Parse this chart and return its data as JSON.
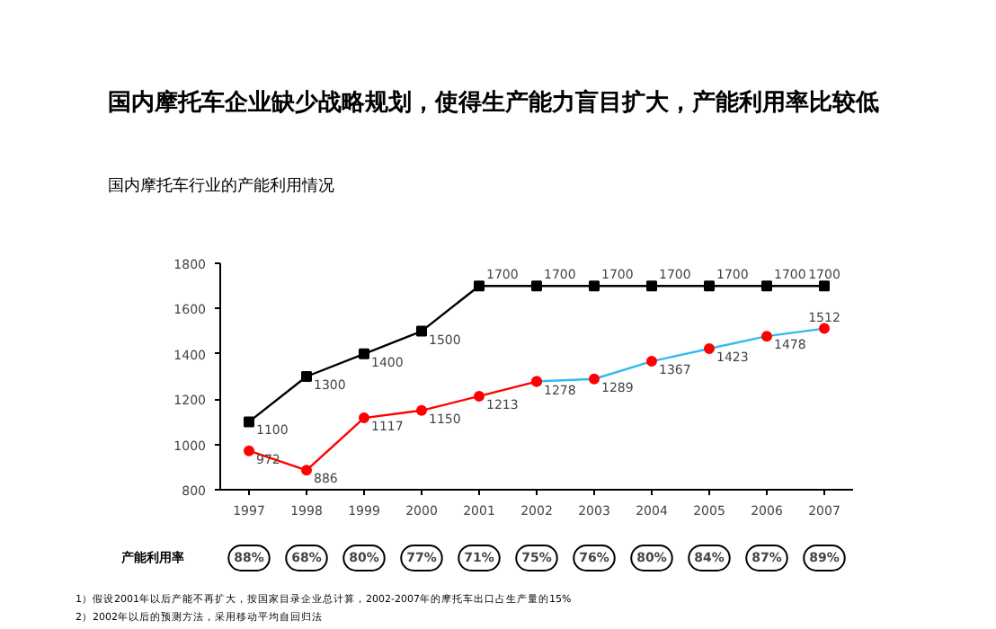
{
  "chart_data": {
    "type": "line",
    "title": "国内摩托车企业缺少战略规划，使得生产能力盲目扩大，产能利用率比较低",
    "subtitle": "国内摩托车行业的产能利用情况",
    "x": [
      1997,
      1998,
      1999,
      2000,
      2001,
      2002,
      2003,
      2004,
      2005,
      2006,
      2007
    ],
    "xlim": [
      1996.5,
      2007.5
    ],
    "xticks": [
      1997,
      1998,
      1999,
      2000,
      2001,
      2002,
      2003,
      2004,
      2005,
      2006,
      2007
    ],
    "ylim": [
      800,
      1800
    ],
    "yticks": [
      800,
      1000,
      1200,
      1400,
      1600,
      1800
    ],
    "series": [
      {
        "color": "#000000",
        "marker": "square",
        "values": [
          1100,
          1300,
          1400,
          1500,
          1700,
          1700,
          1700,
          1700,
          1700,
          1700,
          1700
        ]
      },
      {
        "color": "#ff0000",
        "marker": "circle",
        "values": [
          972,
          886,
          1117,
          1150,
          1213,
          1278,
          null,
          null,
          null,
          null,
          null
        ]
      },
      {
        "color": "#33bbee",
        "marker": "circle",
        "values": [
          null,
          null,
          null,
          null,
          null,
          1278,
          1289,
          1367,
          1423,
          1478,
          1512
        ],
        "value_labels": [
          null,
          null,
          null,
          null,
          null,
          null,
          "1289",
          "1367",
          "1423",
          "1478",
          "1512"
        ]
      }
    ],
    "data_labels": true,
    "grid": false,
    "annotations": [
      "产能利用率",
      "88%",
      "68%",
      "80%",
      "77%",
      "71%",
      "75%",
      "76%",
      "80%",
      "84%",
      "87%",
      "89%",
      "1）假设2001年以后产能不再扩大，按国家目录企业总计算，2002-2007年的摩托车出口占生产量的15%",
      "2）2002年以后的预测方法，采用移动平均自回归法"
    ]
  }
}
